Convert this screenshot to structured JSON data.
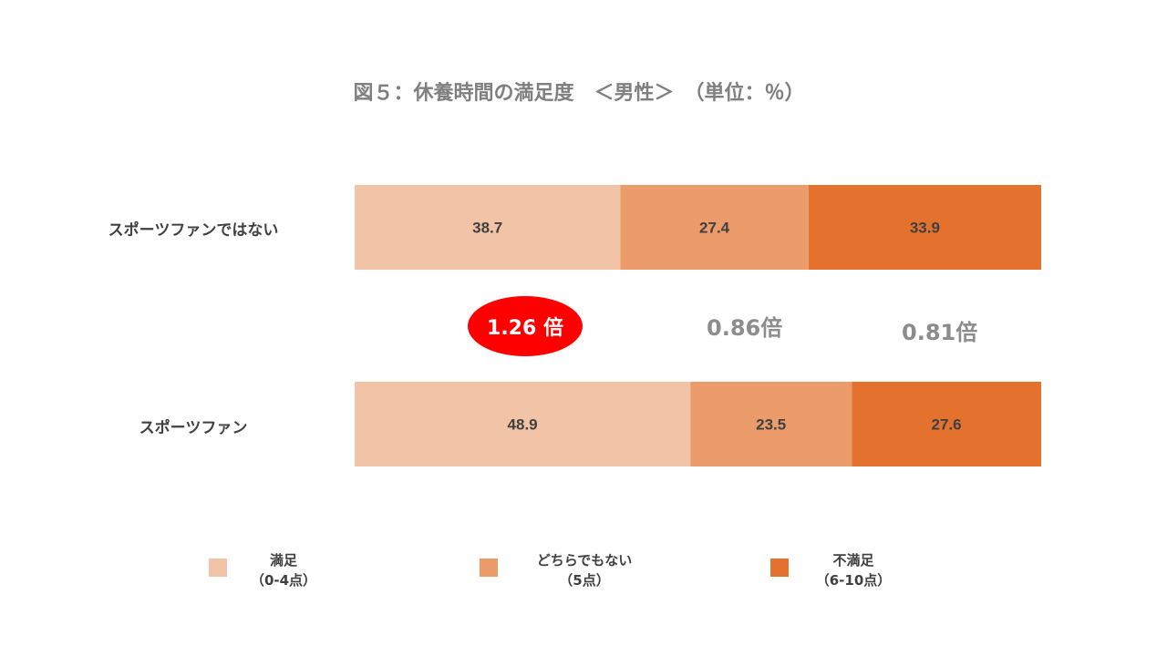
{
  "chart_data": {
    "type": "bar",
    "orientation": "horizontal",
    "stacked": true,
    "percent": true,
    "title": "図５：休養時間の満足度　＜男性＞　（単位：％）",
    "categories": [
      "スポーツファンではない",
      "スポーツファン"
    ],
    "series": [
      {
        "name": "満足",
        "sub": "（0-4点）",
        "color": "#f2c4a7",
        "values": [
          38.7,
          48.9
        ]
      },
      {
        "name": "どちらでもない",
        "sub": "（5点）",
        "color": "#ec9c6b",
        "values": [
          27.4,
          23.5
        ]
      },
      {
        "name": "不満足",
        "sub": "（6-10点）",
        "color": "#e4722e",
        "values": [
          33.9,
          27.6
        ]
      }
    ],
    "xlim": [
      0,
      100
    ],
    "annotations": [
      "1.26 倍",
      "0.86倍",
      "0.81倍"
    ],
    "legend_position": "bottom"
  }
}
